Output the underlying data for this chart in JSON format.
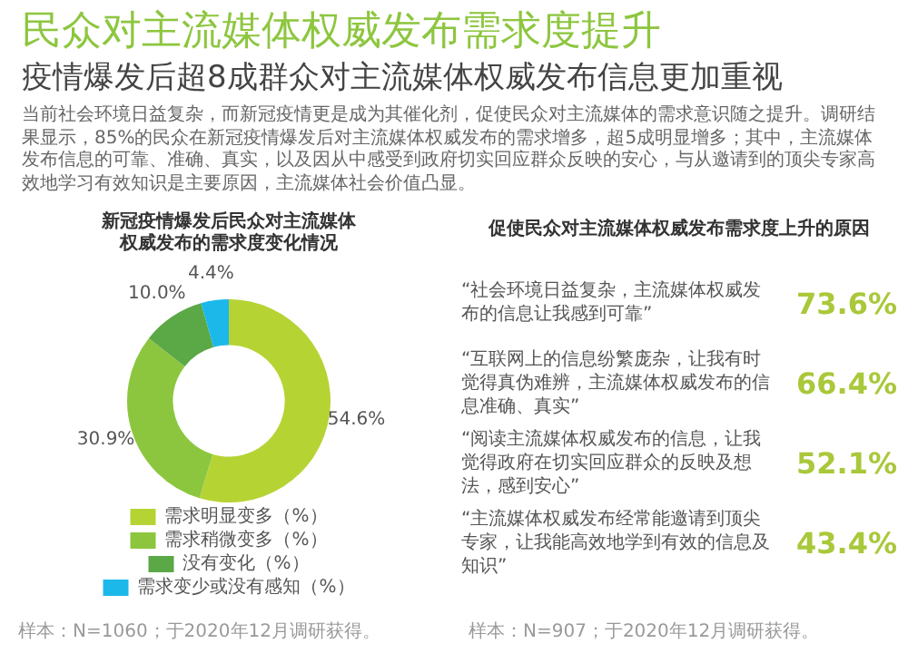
{
  "chart_data": [
    {
      "type": "other",
      "title": "民众对主流媒体权威发布需求度提升",
      "subtitle": "疫情爆发后超8成群众对主流媒体权威发布信息更加重视",
      "annotations": [
        "当前社会环境日益复杂，而新冠疫情更是成为其催化剂，促使民众对主流媒体的需求意识随之提升。调研结果显示，85%的民众在新冠疫情爆发后对主流媒体权威发布的需求增多，超5成明显增多；其中，主流媒体发布信息的可靠、准确、真实，以及因从中感受到政府切实回应群众反映的安心，与从邀请到的顶尖专家高效地学习有效知识是主要原因，主流媒体社会价值凸显。"
      ]
    },
    {
      "type": "donut",
      "title": "新冠疫情爆发后民众对主流媒体权威发布的需求度变化情况",
      "categories": [
        "需求明显变多（%）",
        "需求稍微变多（%）",
        "没有变化（%）",
        "需求变少或没有感知（%）"
      ],
      "values": [
        54.6,
        30.9,
        10.0,
        4.4
      ],
      "value_labels": [
        "54.6%",
        "30.9%",
        "10.0%",
        "4.4%"
      ],
      "colors": [
        "#b6d334",
        "#8cc63f",
        "#5ba846",
        "#1cb8ea"
      ],
      "legend": "bottom",
      "annotations": [
        "样本：N=1060；于2020年12月调研获得。"
      ]
    },
    {
      "type": "other",
      "title": "促使民众对主流媒体权威发布需求度上升的原因",
      "categories": [
        "“社会环境日益复杂，主流媒体权威发布的信息让我感到可靠”",
        "“互联网上的信息纷繁庞杂，让我有时觉得真伪难辨，主流媒体权威发布的信息准确、真实”",
        "“阅读主流媒体权威发布的信息，让我觉得政府在切实回应群众的反映及想法，感到安心”",
        "“主流媒体权威发布经常能邀请到顶尖专家，让我能高效地学到有效的信息及知识”"
      ],
      "values": [
        73.6,
        66.4,
        52.1,
        43.4
      ],
      "value_labels": [
        "73.6%",
        "66.4%",
        "52.1%",
        "43.4%"
      ],
      "color": "#a9c83a",
      "annotations": [
        "样本：N=907；于2020年12月调研获得。"
      ]
    }
  ]
}
